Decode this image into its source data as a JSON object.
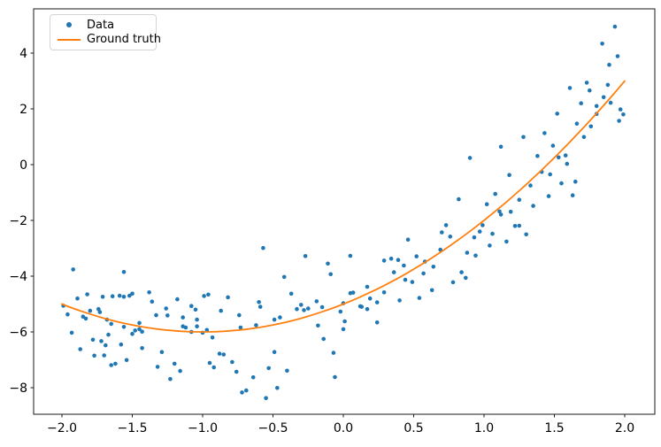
{
  "chart_data": {
    "type": "scatter",
    "title": "",
    "xlabel": "",
    "ylabel": "",
    "xlim": [
      -2.2,
      2.21
    ],
    "ylim": [
      -8.95,
      5.59
    ],
    "grid": false,
    "background_color": "#ffffff",
    "axis_color": "#1a1a1a",
    "legend_position": "upper left",
    "x_ticks": [
      {
        "v": -2.0,
        "label": "−2.0"
      },
      {
        "v": -1.5,
        "label": "−1.5"
      },
      {
        "v": -1.0,
        "label": "−1.0"
      },
      {
        "v": -0.5,
        "label": "−0.5"
      },
      {
        "v": 0.0,
        "label": "0.0"
      },
      {
        "v": 0.5,
        "label": "0.5"
      },
      {
        "v": 1.0,
        "label": "1.0"
      },
      {
        "v": 1.5,
        "label": "1.5"
      },
      {
        "v": 2.0,
        "label": "2.0"
      }
    ],
    "y_ticks": [
      {
        "v": -8,
        "label": "−8"
      },
      {
        "v": -6,
        "label": "−6"
      },
      {
        "v": -4,
        "label": "−4"
      },
      {
        "v": -2,
        "label": "−2"
      },
      {
        "v": 0,
        "label": "0"
      },
      {
        "v": 2,
        "label": "2"
      },
      {
        "v": 4,
        "label": "4"
      }
    ],
    "series": [
      {
        "name": "Data",
        "type": "scatter",
        "color": "#1f77b4",
        "marker": "circle",
        "points": [
          [
            1.93,
            4.95
          ],
          [
            1.84,
            4.34
          ],
          [
            1.95,
            3.89
          ],
          [
            1.89,
            3.58
          ],
          [
            1.88,
            2.86
          ],
          [
            1.73,
            2.94
          ],
          [
            1.75,
            2.66
          ],
          [
            1.61,
            2.75
          ],
          [
            1.85,
            2.42
          ],
          [
            1.69,
            2.2
          ],
          [
            1.9,
            2.22
          ],
          [
            1.8,
            2.1
          ],
          [
            1.97,
            1.98
          ],
          [
            1.99,
            1.8
          ],
          [
            1.52,
            1.83
          ],
          [
            1.8,
            1.82
          ],
          [
            1.96,
            1.57
          ],
          [
            1.66,
            1.47
          ],
          [
            1.76,
            1.37
          ],
          [
            1.43,
            1.13
          ],
          [
            1.28,
            0.99
          ],
          [
            1.71,
            0.99
          ],
          [
            1.12,
            0.64
          ],
          [
            0.9,
            0.24
          ],
          [
            1.49,
            0.68
          ],
          [
            1.38,
            0.31
          ],
          [
            1.53,
            0.26
          ],
          [
            1.58,
            0.33
          ],
          [
            1.59,
            0.03
          ],
          [
            1.41,
            -0.26
          ],
          [
            1.47,
            -0.35
          ],
          [
            1.18,
            -0.37
          ],
          [
            1.65,
            -0.61
          ],
          [
            1.55,
            -0.67
          ],
          [
            1.33,
            -0.75
          ],
          [
            1.08,
            -1.05
          ],
          [
            0.82,
            -1.24
          ],
          [
            1.46,
            -1.13
          ],
          [
            1.63,
            -1.1
          ],
          [
            1.02,
            -1.42
          ],
          [
            1.25,
            -1.26
          ],
          [
            1.11,
            -1.68
          ],
          [
            1.12,
            -1.79
          ],
          [
            1.35,
            -1.48
          ],
          [
            1.19,
            -1.69
          ],
          [
            0.99,
            -2.17
          ],
          [
            1.22,
            -2.2
          ],
          [
            1.25,
            -2.19
          ],
          [
            0.97,
            -2.4
          ],
          [
            0.93,
            -2.61
          ],
          [
            1.06,
            -2.48
          ],
          [
            1.3,
            -2.5
          ],
          [
            1.16,
            -2.76
          ],
          [
            1.04,
            -2.9
          ],
          [
            0.88,
            -3.16
          ],
          [
            0.94,
            -3.26
          ],
          [
            0.76,
            -2.58
          ],
          [
            0.84,
            -3.86
          ],
          [
            0.87,
            -4.06
          ],
          [
            0.78,
            -4.22
          ],
          [
            -0.57,
            -2.99
          ],
          [
            -0.27,
            -3.28
          ],
          [
            -0.11,
            -3.55
          ],
          [
            -0.42,
            -4.03
          ],
          [
            -0.09,
            -3.93
          ],
          [
            0.05,
            -3.27
          ],
          [
            0.29,
            -3.44
          ],
          [
            0.34,
            -3.37
          ],
          [
            0.39,
            -3.42
          ],
          [
            0.36,
            -3.86
          ],
          [
            0.43,
            -3.62
          ],
          [
            0.46,
            -2.69
          ],
          [
            0.52,
            -3.29
          ],
          [
            0.58,
            -3.48
          ],
          [
            0.64,
            -3.66
          ],
          [
            0.57,
            -3.9
          ],
          [
            0.73,
            -2.17
          ],
          [
            0.7,
            -2.43
          ],
          [
            0.69,
            -3.05
          ],
          [
            -1.92,
            -3.76
          ],
          [
            -1.56,
            -3.85
          ],
          [
            -0.37,
            -4.63
          ],
          [
            -0.6,
            -4.93
          ],
          [
            -0.59,
            -5.1
          ],
          [
            -0.62,
            -5.76
          ],
          [
            -0.73,
            -5.84
          ],
          [
            -0.49,
            -5.56
          ],
          [
            -0.45,
            -5.48
          ],
          [
            -0.3,
            -5.03
          ],
          [
            -0.33,
            -5.18
          ],
          [
            -0.28,
            -5.22
          ],
          [
            -0.25,
            -5.16
          ],
          [
            -0.19,
            -4.9
          ],
          [
            -0.15,
            -5.11
          ],
          [
            -0.14,
            -6.25
          ],
          [
            -0.18,
            -5.77
          ],
          [
            0.0,
            -4.97
          ],
          [
            -0.02,
            -5.27
          ],
          [
            0.05,
            -4.61
          ],
          [
            0.07,
            -4.59
          ],
          [
            0.01,
            -5.62
          ],
          [
            0.0,
            -5.9
          ],
          [
            0.17,
            -4.38
          ],
          [
            0.12,
            -5.08
          ],
          [
            0.13,
            -5.1
          ],
          [
            0.17,
            -5.18
          ],
          [
            0.19,
            -4.8
          ],
          [
            0.24,
            -4.94
          ],
          [
            0.24,
            -5.66
          ],
          [
            0.29,
            -4.58
          ],
          [
            0.4,
            -4.87
          ],
          [
            0.44,
            -4.13
          ],
          [
            0.49,
            -4.21
          ],
          [
            0.54,
            -4.78
          ],
          [
            0.63,
            -4.5
          ],
          [
            -0.07,
            -6.75
          ],
          [
            -0.06,
            -7.62
          ],
          [
            -0.64,
            -7.63
          ],
          [
            -0.53,
            -7.3
          ],
          [
            -0.47,
            -8.01
          ],
          [
            -0.55,
            -8.37
          ],
          [
            -0.4,
            -7.39
          ],
          [
            -1.29,
            -6.72
          ],
          [
            -1.32,
            -7.25
          ],
          [
            -1.2,
            -7.14
          ],
          [
            -1.16,
            -7.4
          ],
          [
            -1.23,
            -7.69
          ],
          [
            -0.95,
            -7.11
          ],
          [
            -0.92,
            -7.27
          ],
          [
            -0.88,
            -6.78
          ],
          [
            -0.85,
            -6.81
          ],
          [
            -0.79,
            -7.08
          ],
          [
            -0.76,
            -7.43
          ],
          [
            -0.72,
            -8.17
          ],
          [
            -0.69,
            -8.1
          ],
          [
            -0.49,
            -6.72
          ],
          [
            -1.89,
            -4.8
          ],
          [
            -1.82,
            -4.65
          ],
          [
            -1.71,
            -4.74
          ],
          [
            -1.64,
            -4.72
          ],
          [
            -1.59,
            -4.7
          ],
          [
            -1.56,
            -4.74
          ],
          [
            -1.52,
            -4.7
          ],
          [
            -1.5,
            -4.63
          ],
          [
            -1.38,
            -4.58
          ],
          [
            -1.36,
            -4.91
          ],
          [
            -1.18,
            -4.83
          ],
          [
            -1.08,
            -5.07
          ],
          [
            -1.05,
            -5.2
          ],
          [
            -0.99,
            -4.71
          ],
          [
            -0.96,
            -4.66
          ],
          [
            -0.87,
            -5.24
          ],
          [
            -0.82,
            -4.76
          ],
          [
            -0.74,
            -5.4
          ],
          [
            -1.99,
            -5.06
          ],
          [
            -1.96,
            -5.37
          ],
          [
            -1.85,
            -5.45
          ],
          [
            -1.83,
            -5.52
          ],
          [
            -1.8,
            -5.24
          ],
          [
            -1.74,
            -5.18
          ],
          [
            -1.73,
            -5.29
          ],
          [
            -1.68,
            -5.56
          ],
          [
            -1.65,
            -5.71
          ],
          [
            -1.56,
            -5.82
          ],
          [
            -1.45,
            -5.68
          ],
          [
            -1.45,
            -5.9
          ],
          [
            -1.48,
            -5.95
          ],
          [
            -1.5,
            -6.07
          ],
          [
            -1.43,
            -5.99
          ],
          [
            -1.26,
            -5.16
          ],
          [
            -1.25,
            -5.41
          ],
          [
            -1.33,
            -5.4
          ],
          [
            -1.14,
            -5.48
          ],
          [
            -1.14,
            -5.8
          ],
          [
            -1.12,
            -5.84
          ],
          [
            -1.04,
            -5.56
          ],
          [
            -1.04,
            -5.8
          ],
          [
            -0.97,
            -5.93
          ],
          [
            -1.08,
            -6.0
          ],
          [
            -1.0,
            -6.03
          ],
          [
            -0.93,
            -6.2
          ],
          [
            -1.93,
            -6.03
          ],
          [
            -1.67,
            -6.1
          ],
          [
            -1.87,
            -6.62
          ],
          [
            -1.78,
            -6.28
          ],
          [
            -1.72,
            -6.33
          ],
          [
            -1.69,
            -6.48
          ],
          [
            -1.58,
            -6.45
          ],
          [
            -1.43,
            -6.58
          ],
          [
            -1.77,
            -6.85
          ],
          [
            -1.7,
            -6.84
          ],
          [
            -1.62,
            -7.14
          ],
          [
            -1.65,
            -7.19
          ],
          [
            -1.54,
            -7.01
          ]
        ]
      },
      {
        "name": "Ground truth",
        "type": "line",
        "color": "#ff7f0e",
        "polynomial_coefficients": [
          1,
          2,
          -5
        ],
        "equation": "y = x^2 + 2x - 5",
        "x_range": [
          -2,
          2
        ]
      }
    ]
  },
  "legend": {
    "items": [
      {
        "label": "Data",
        "marker": "dot",
        "color": "#1f77b4"
      },
      {
        "label": "Ground truth",
        "marker": "line",
        "color": "#ff7f0e"
      }
    ]
  }
}
